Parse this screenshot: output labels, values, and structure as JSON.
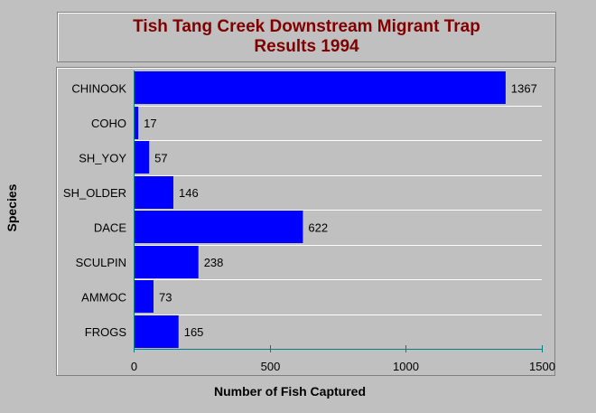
{
  "chart_data": {
    "type": "bar",
    "orientation": "horizontal",
    "title": [
      "Tish Tang Creek Downstream Migrant Trap",
      "Results 1994"
    ],
    "xlabel": "Number of Fish Captured",
    "ylabel": "Species",
    "categories": [
      "CHINOOK",
      "COHO",
      "SH_YOY",
      "SH_OLDER",
      "DACE",
      "SCULPIN",
      "AMMOC",
      "FROGS"
    ],
    "values": [
      1367,
      17,
      57,
      146,
      622,
      238,
      73,
      165
    ],
    "data_labels": [
      "1367",
      "17",
      "57",
      "146",
      "622",
      "238",
      "73",
      "165"
    ],
    "xlim": [
      0,
      1500
    ],
    "xticks": [
      0,
      500,
      1000,
      1500
    ],
    "xtick_labels": [
      "0",
      "500",
      "1000",
      "1500"
    ],
    "grid": true,
    "colors": {
      "bar": "#0000ff",
      "title": "#800000",
      "background": "#c0c0c0",
      "grid": "#ffffff"
    }
  }
}
